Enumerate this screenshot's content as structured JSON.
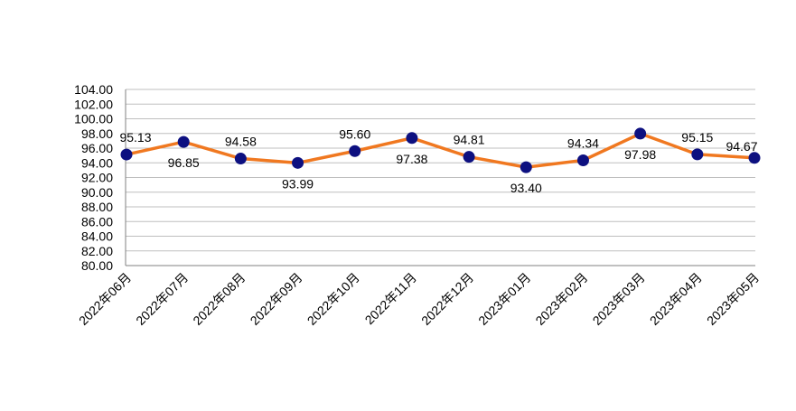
{
  "chart_data": {
    "type": "line",
    "categories": [
      "2022年06月",
      "2022年07月",
      "2022年08月",
      "2022年09月",
      "2022年10月",
      "2022年11月",
      "2022年12月",
      "2023年01月",
      "2023年02月",
      "2023年03月",
      "2023年04月",
      "2023年05月"
    ],
    "series": [
      {
        "values": [
          95.13,
          96.85,
          94.58,
          93.99,
          95.6,
          97.38,
          94.81,
          93.4,
          94.34,
          97.98,
          95.15,
          94.67
        ]
      }
    ],
    "data_labels": [
      "95.13",
      "96.85",
      "94.58",
      "93.99",
      "95.60",
      "97.38",
      "94.81",
      "93.40",
      "94.34",
      "97.98",
      "95.15",
      "94.67"
    ],
    "ylim": [
      80,
      104
    ],
    "y_ticks": [
      "80.00",
      "82.00",
      "84.00",
      "86.00",
      "88.00",
      "90.00",
      "92.00",
      "94.00",
      "96.00",
      "98.00",
      "100.00",
      "102.00",
      "104.00"
    ],
    "grid": "horizontal",
    "colors": {
      "line": "#F07820",
      "marker": "#0D1080",
      "grid": "#BFBFBF",
      "axis": "#808080"
    }
  }
}
